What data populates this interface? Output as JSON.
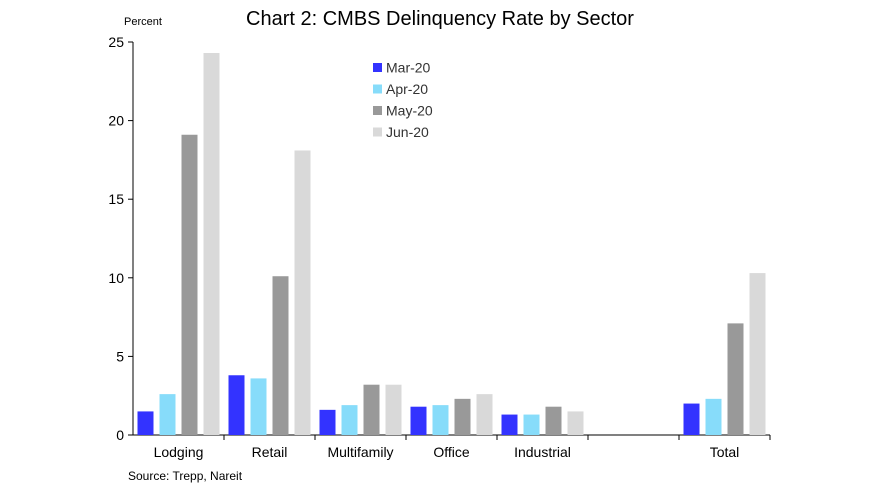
{
  "chart_data": {
    "type": "bar",
    "title": "Chart 2: CMBS Delinquency Rate by Sector",
    "ylabel": "Percent",
    "xlabel": "",
    "source": "Source: Trepp, Nareit",
    "ylim": [
      0,
      25
    ],
    "yticks": [
      "0",
      "5",
      "10",
      "15",
      "20",
      "25"
    ],
    "categories": [
      "Lodging",
      "Retail",
      "Multifamily",
      "Office",
      "Industrial",
      "",
      "Total"
    ],
    "series": [
      {
        "name": "Mar-20",
        "color": "#3333ff",
        "values": [
          1.5,
          3.8,
          1.6,
          1.8,
          1.3,
          null,
          2.0
        ]
      },
      {
        "name": "Apr-20",
        "color": "#87dcfa",
        "values": [
          2.6,
          3.6,
          1.9,
          1.9,
          1.3,
          null,
          2.3
        ]
      },
      {
        "name": "May-20",
        "color": "#999999",
        "values": [
          19.1,
          10.1,
          3.2,
          2.3,
          1.8,
          null,
          7.1
        ]
      },
      {
        "name": "Jun-20",
        "color": "#d9d9d9",
        "values": [
          24.3,
          18.1,
          3.2,
          2.6,
          1.5,
          null,
          10.3
        ]
      }
    ],
    "legend": "top-center",
    "grid": false
  }
}
